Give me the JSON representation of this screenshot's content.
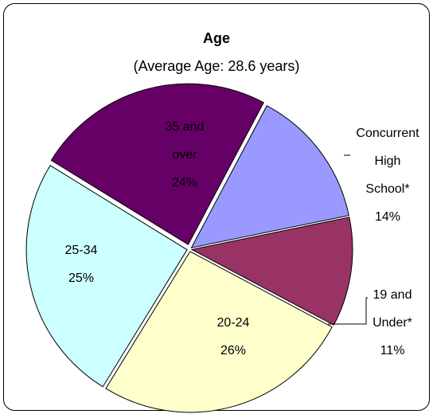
{
  "chart_data": {
    "type": "pie",
    "title": "Age",
    "subtitle": "(Average Age:  28.6 years)",
    "categories": [
      "Concurrent High School*",
      "19 and Under*",
      "20-24",
      "25-34",
      "35 and over"
    ],
    "values": [
      14,
      11,
      26,
      25,
      24
    ],
    "value_labels": [
      "14%",
      "11%",
      "26%",
      "25%",
      "24%"
    ],
    "colors": [
      "#9999ff",
      "#993366",
      "#ffffcc",
      "#ccffff",
      "#660066"
    ]
  }
}
